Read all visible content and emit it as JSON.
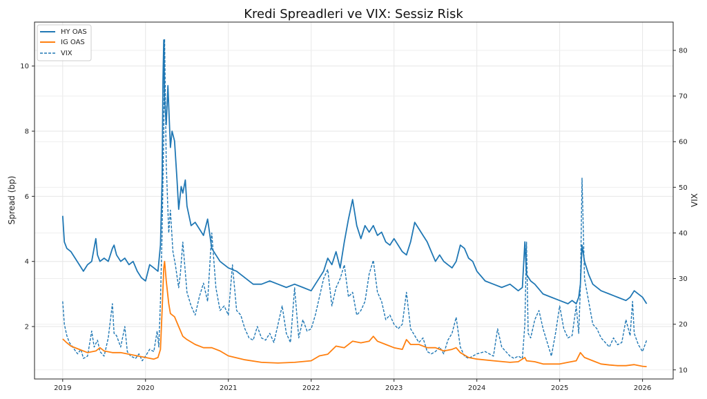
{
  "chart_data": {
    "type": "line",
    "title": "Kredi Spreadleri ve VIX: Sessiz Risk",
    "xlabel": "",
    "ylabel": "Spread (bp)",
    "y2label": "VIX",
    "xlim": [
      2018.66,
      2026.37
    ],
    "ylim": [
      0.39,
      11.35
    ],
    "y2lim": [
      8.0,
      86.2
    ],
    "x_ticks": [
      2019,
      2020,
      2021,
      2022,
      2023,
      2024,
      2025,
      2026
    ],
    "x_tick_labels": [
      "2019",
      "2020",
      "2021",
      "2022",
      "2023",
      "2024",
      "2025",
      "2026"
    ],
    "y_ticks": [
      2,
      4,
      6,
      8,
      10
    ],
    "y_tick_labels": [
      "2",
      "4",
      "6",
      "8",
      "10"
    ],
    "y2_ticks": [
      10,
      20,
      30,
      40,
      50,
      60,
      70,
      80
    ],
    "y2_tick_labels": [
      "10",
      "20",
      "30",
      "40",
      "50",
      "60",
      "70",
      "80"
    ],
    "grid": true,
    "legend": {
      "position": "top-left",
      "entries": [
        "HY OAS",
        "IG OAS",
        "VIX"
      ]
    },
    "series": [
      {
        "name": "HY OAS",
        "axis": "left",
        "color": "#1f77b4",
        "style": "solid",
        "x": [
          2019.0,
          2019.02,
          2019.05,
          2019.1,
          2019.15,
          2019.2,
          2019.25,
          2019.3,
          2019.35,
          2019.4,
          2019.42,
          2019.45,
          2019.5,
          2019.55,
          2019.6,
          2019.62,
          2019.65,
          2019.7,
          2019.75,
          2019.8,
          2019.85,
          2019.9,
          2019.95,
          2020.0,
          2020.05,
          2020.1,
          2020.15,
          2020.18,
          2020.2,
          2020.21,
          2020.22,
          2020.23,
          2020.25,
          2020.27,
          2020.3,
          2020.32,
          2020.35,
          2020.38,
          2020.4,
          2020.43,
          2020.45,
          2020.48,
          2020.5,
          2020.55,
          2020.6,
          2020.65,
          2020.7,
          2020.75,
          2020.8,
          2020.85,
          2020.9,
          2021.0,
          2021.1,
          2021.2,
          2021.3,
          2021.4,
          2021.5,
          2021.6,
          2021.7,
          2021.8,
          2021.9,
          2022.0,
          2022.05,
          2022.1,
          2022.15,
          2022.2,
          2022.25,
          2022.3,
          2022.35,
          2022.4,
          2022.45,
          2022.5,
          2022.55,
          2022.6,
          2022.65,
          2022.7,
          2022.75,
          2022.8,
          2022.85,
          2022.9,
          2022.95,
          2023.0,
          2023.05,
          2023.1,
          2023.15,
          2023.2,
          2023.25,
          2023.3,
          2023.35,
          2023.4,
          2023.45,
          2023.5,
          2023.55,
          2023.6,
          2023.65,
          2023.7,
          2023.75,
          2023.8,
          2023.85,
          2023.9,
          2023.95,
          2024.0,
          2024.1,
          2024.2,
          2024.3,
          2024.4,
          2024.5,
          2024.55,
          2024.58,
          2024.6,
          2024.65,
          2024.7,
          2024.8,
          2024.9,
          2025.0,
          2025.1,
          2025.15,
          2025.2,
          2025.23,
          2025.25,
          2025.27,
          2025.3,
          2025.35,
          2025.4,
          2025.5,
          2025.6,
          2025.7,
          2025.8,
          2025.85,
          2025.9,
          2025.95,
          2026.0,
          2026.05
        ],
        "values": [
          5.4,
          4.6,
          4.4,
          4.3,
          4.1,
          3.9,
          3.7,
          3.9,
          4.0,
          4.7,
          4.2,
          4.0,
          4.1,
          4.0,
          4.4,
          4.5,
          4.2,
          4.0,
          4.1,
          3.9,
          4.0,
          3.7,
          3.5,
          3.4,
          3.9,
          3.8,
          3.7,
          4.5,
          6.5,
          9.5,
          10.8,
          9.0,
          8.2,
          9.4,
          7.5,
          8.0,
          7.7,
          6.5,
          5.6,
          6.3,
          6.1,
          6.5,
          5.7,
          5.1,
          5.2,
          5.0,
          4.8,
          5.3,
          4.4,
          4.2,
          4.0,
          3.8,
          3.7,
          3.5,
          3.3,
          3.3,
          3.4,
          3.3,
          3.2,
          3.3,
          3.2,
          3.1,
          3.3,
          3.5,
          3.7,
          4.1,
          3.9,
          4.3,
          3.8,
          4.6,
          5.3,
          5.9,
          5.1,
          4.7,
          5.1,
          4.9,
          5.1,
          4.8,
          4.9,
          4.6,
          4.5,
          4.7,
          4.5,
          4.3,
          4.2,
          4.6,
          5.2,
          5.0,
          4.8,
          4.6,
          4.3,
          4.0,
          4.2,
          4.0,
          3.9,
          3.8,
          4.0,
          4.5,
          4.4,
          4.1,
          4.0,
          3.7,
          3.4,
          3.3,
          3.2,
          3.3,
          3.1,
          3.2,
          4.6,
          3.6,
          3.4,
          3.3,
          3.0,
          2.9,
          2.8,
          2.7,
          2.8,
          2.7,
          2.9,
          3.3,
          4.5,
          4.0,
          3.6,
          3.3,
          3.1,
          3.0,
          2.9,
          2.8,
          2.9,
          3.1,
          3.0,
          2.9,
          2.7
        ],
        "x_unit": "year"
      },
      {
        "name": "IG OAS",
        "axis": "left",
        "color": "#ff7f0e",
        "style": "solid",
        "x": [
          2019.0,
          2019.05,
          2019.1,
          2019.2,
          2019.3,
          2019.4,
          2019.45,
          2019.5,
          2019.6,
          2019.7,
          2019.8,
          2019.9,
          2020.0,
          2020.1,
          2020.15,
          2020.18,
          2020.2,
          2020.22,
          2020.23,
          2020.25,
          2020.28,
          2020.3,
          2020.35,
          2020.4,
          2020.45,
          2020.5,
          2020.6,
          2020.7,
          2020.8,
          2020.9,
          2021.0,
          2021.2,
          2021.4,
          2021.6,
          2021.8,
          2022.0,
          2022.1,
          2022.2,
          2022.3,
          2022.4,
          2022.5,
          2022.6,
          2022.7,
          2022.75,
          2022.8,
          2022.9,
          2023.0,
          2023.1,
          2023.15,
          2023.2,
          2023.3,
          2023.4,
          2023.5,
          2023.6,
          2023.7,
          2023.75,
          2023.8,
          2023.9,
          2024.0,
          2024.2,
          2024.4,
          2024.5,
          2024.58,
          2024.6,
          2024.7,
          2024.8,
          2024.9,
          2025.0,
          2025.1,
          2025.2,
          2025.25,
          2025.3,
          2025.4,
          2025.5,
          2025.6,
          2025.7,
          2025.8,
          2025.9,
          2026.0,
          2026.05
        ],
        "values": [
          1.62,
          1.5,
          1.4,
          1.3,
          1.2,
          1.25,
          1.35,
          1.25,
          1.2,
          1.2,
          1.15,
          1.1,
          1.05,
          1.0,
          1.05,
          1.3,
          2.5,
          3.8,
          4.0,
          3.4,
          2.7,
          2.4,
          2.3,
          2.0,
          1.7,
          1.6,
          1.45,
          1.35,
          1.35,
          1.25,
          1.1,
          0.98,
          0.9,
          0.88,
          0.9,
          0.95,
          1.1,
          1.15,
          1.4,
          1.35,
          1.55,
          1.5,
          1.55,
          1.7,
          1.55,
          1.45,
          1.35,
          1.3,
          1.6,
          1.45,
          1.45,
          1.35,
          1.35,
          1.25,
          1.3,
          1.35,
          1.2,
          1.05,
          1.0,
          0.95,
          0.9,
          0.92,
          1.05,
          0.95,
          0.92,
          0.85,
          0.85,
          0.85,
          0.9,
          0.95,
          1.2,
          1.05,
          0.95,
          0.85,
          0.82,
          0.8,
          0.8,
          0.83,
          0.78,
          0.77
        ],
        "x_unit": "year"
      },
      {
        "name": "VIX",
        "axis": "right",
        "color": "#1f77b4",
        "style": "dashed",
        "x": [
          2019.0,
          2019.02,
          2019.05,
          2019.08,
          2019.12,
          2019.18,
          2019.22,
          2019.25,
          2019.3,
          2019.35,
          2019.38,
          2019.42,
          2019.45,
          2019.5,
          2019.55,
          2019.6,
          2019.62,
          2019.65,
          2019.7,
          2019.75,
          2019.78,
          2019.82,
          2019.88,
          2019.92,
          2019.96,
          2020.0,
          2020.05,
          2020.1,
          2020.14,
          2020.16,
          2020.18,
          2020.2,
          2020.22,
          2020.23,
          2020.25,
          2020.28,
          2020.3,
          2020.33,
          2020.36,
          2020.4,
          2020.42,
          2020.45,
          2020.5,
          2020.55,
          2020.6,
          2020.65,
          2020.7,
          2020.75,
          2020.8,
          2020.85,
          2020.9,
          2020.95,
          2021.0,
          2021.05,
          2021.1,
          2021.15,
          2021.2,
          2021.25,
          2021.3,
          2021.35,
          2021.4,
          2021.45,
          2021.5,
          2021.55,
          2021.6,
          2021.65,
          2021.7,
          2021.75,
          2021.8,
          2021.85,
          2021.9,
          2021.95,
          2022.0,
          2022.05,
          2022.1,
          2022.15,
          2022.2,
          2022.25,
          2022.3,
          2022.35,
          2022.4,
          2022.45,
          2022.5,
          2022.55,
          2022.6,
          2022.65,
          2022.7,
          2022.75,
          2022.8,
          2022.85,
          2022.9,
          2022.95,
          2023.0,
          2023.05,
          2023.1,
          2023.15,
          2023.2,
          2023.25,
          2023.3,
          2023.35,
          2023.4,
          2023.45,
          2023.5,
          2023.55,
          2023.6,
          2023.65,
          2023.7,
          2023.75,
          2023.8,
          2023.85,
          2023.9,
          2023.95,
          2024.0,
          2024.1,
          2024.2,
          2024.25,
          2024.3,
          2024.35,
          2024.4,
          2024.45,
          2024.5,
          2024.55,
          2024.58,
          2024.6,
          2024.62,
          2024.65,
          2024.7,
          2024.75,
          2024.8,
          2024.85,
          2024.9,
          2024.95,
          2025.0,
          2025.05,
          2025.1,
          2025.15,
          2025.2,
          2025.23,
          2025.25,
          2025.27,
          2025.3,
          2025.35,
          2025.4,
          2025.45,
          2025.5,
          2025.55,
          2025.6,
          2025.65,
          2025.7,
          2025.75,
          2025.8,
          2025.85,
          2025.88,
          2025.9,
          2025.95,
          2026.0,
          2026.05
        ],
        "values": [
          25.0,
          20.0,
          17.5,
          16.0,
          15.0,
          13.5,
          14.5,
          12.5,
          13.0,
          18.5,
          15.0,
          16.5,
          14.0,
          13.0,
          17.0,
          24.5,
          18.0,
          17.5,
          15.0,
          19.5,
          14.0,
          13.0,
          12.5,
          13.5,
          12.0,
          13.0,
          14.5,
          14.0,
          18.5,
          15.0,
          25.0,
          40.0,
          62.0,
          82.5,
          55.0,
          40.0,
          45.0,
          36.0,
          33.0,
          28.0,
          31.0,
          38.0,
          27.0,
          24.0,
          22.0,
          26.0,
          29.0,
          25.0,
          40.0,
          28.0,
          23.0,
          24.0,
          22.0,
          33.0,
          23.0,
          22.0,
          19.0,
          17.0,
          16.5,
          19.5,
          17.0,
          16.5,
          18.0,
          16.0,
          20.0,
          24.0,
          18.0,
          16.0,
          28.0,
          17.0,
          21.0,
          18.5,
          19.0,
          22.0,
          26.0,
          30.0,
          32.0,
          24.0,
          28.0,
          30.0,
          33.0,
          26.0,
          27.0,
          22.0,
          23.0,
          25.0,
          31.0,
          34.0,
          27.0,
          25.0,
          21.0,
          22.0,
          20.0,
          19.0,
          20.0,
          27.0,
          19.0,
          17.5,
          16.0,
          17.0,
          14.0,
          13.5,
          14.0,
          15.0,
          13.5,
          16.5,
          18.0,
          21.5,
          15.0,
          13.0,
          12.5,
          13.0,
          13.5,
          14.0,
          13.0,
          19.0,
          15.0,
          14.0,
          13.0,
          12.5,
          13.0,
          12.5,
          20.0,
          38.0,
          18.0,
          17.0,
          21.0,
          23.0,
          19.0,
          16.0,
          13.0,
          18.0,
          24.0,
          19.0,
          17.0,
          17.5,
          24.0,
          18.0,
          28.0,
          52.0,
          30.0,
          25.0,
          20.0,
          19.0,
          17.0,
          16.0,
          15.0,
          17.0,
          15.5,
          16.0,
          21.0,
          17.5,
          25.0,
          18.0,
          15.5,
          14.0,
          16.5
        ],
        "x_unit": "year"
      }
    ]
  }
}
